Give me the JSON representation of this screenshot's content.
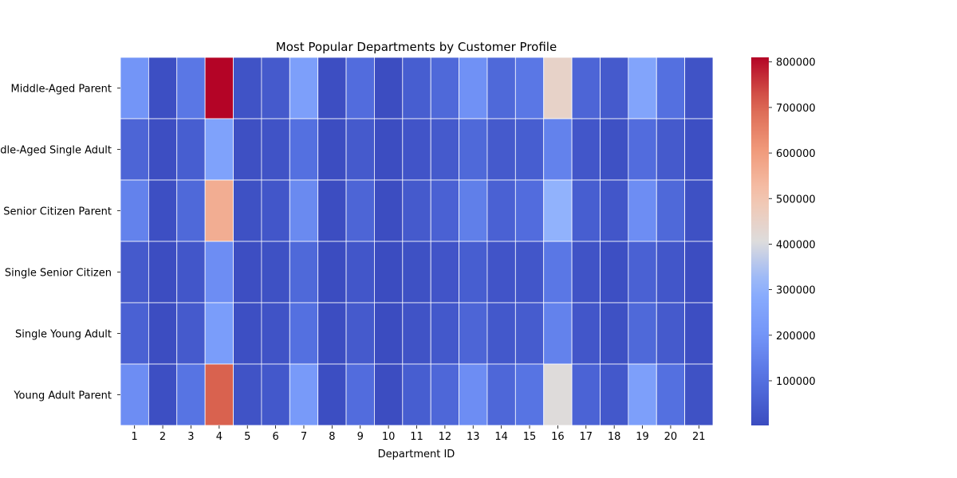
{
  "chart_data": {
    "type": "heatmap",
    "title": "Most Popular Departments by Customer Profile",
    "xlabel": "Department ID",
    "ylabel": "",
    "x_categories": [
      "1",
      "2",
      "3",
      "4",
      "5",
      "6",
      "7",
      "8",
      "9",
      "10",
      "11",
      "12",
      "13",
      "14",
      "15",
      "16",
      "17",
      "18",
      "19",
      "20",
      "21"
    ],
    "y_categories": [
      "Middle-Aged Parent",
      "Middle-Aged Single Adult",
      "Senior Citizen Parent",
      "Single Senior Citizen",
      "Single Young Adult",
      "Young Adult Parent"
    ],
    "values": [
      [
        200000,
        10000,
        120000,
        810000,
        20000,
        40000,
        240000,
        8000,
        90000,
        5000,
        50000,
        80000,
        190000,
        80000,
        120000,
        450000,
        70000,
        40000,
        260000,
        100000,
        20000
      ],
      [
        70000,
        8000,
        50000,
        250000,
        12000,
        20000,
        100000,
        4000,
        40000,
        4000,
        25000,
        40000,
        80000,
        40000,
        50000,
        150000,
        30000,
        15000,
        90000,
        40000,
        10000
      ],
      [
        150000,
        10000,
        80000,
        560000,
        15000,
        30000,
        170000,
        6000,
        70000,
        4000,
        40000,
        60000,
        140000,
        60000,
        90000,
        310000,
        50000,
        30000,
        180000,
        80000,
        15000
      ],
      [
        40000,
        5000,
        30000,
        180000,
        8000,
        15000,
        80000,
        3000,
        30000,
        2000,
        15000,
        25000,
        50000,
        25000,
        30000,
        120000,
        20000,
        10000,
        60000,
        30000,
        5000
      ],
      [
        60000,
        6000,
        40000,
        230000,
        10000,
        20000,
        100000,
        4000,
        40000,
        3000,
        20000,
        35000,
        70000,
        35000,
        45000,
        150000,
        30000,
        15000,
        80000,
        40000,
        8000
      ],
      [
        180000,
        10000,
        110000,
        710000,
        20000,
        35000,
        220000,
        7000,
        90000,
        5000,
        50000,
        75000,
        180000,
        75000,
        110000,
        410000,
        65000,
        35000,
        240000,
        100000,
        18000
      ]
    ],
    "colorbar": {
      "min": 2000,
      "max": 810000,
      "ticks": [
        100000,
        200000,
        300000,
        400000,
        500000,
        600000,
        700000,
        800000
      ],
      "tick_labels": [
        "100000",
        "200000",
        "300000",
        "400000",
        "500000",
        "600000",
        "700000",
        "800000"
      ],
      "colormap": "coolwarm"
    },
    "grid": true,
    "legend": "colorbar-right"
  }
}
